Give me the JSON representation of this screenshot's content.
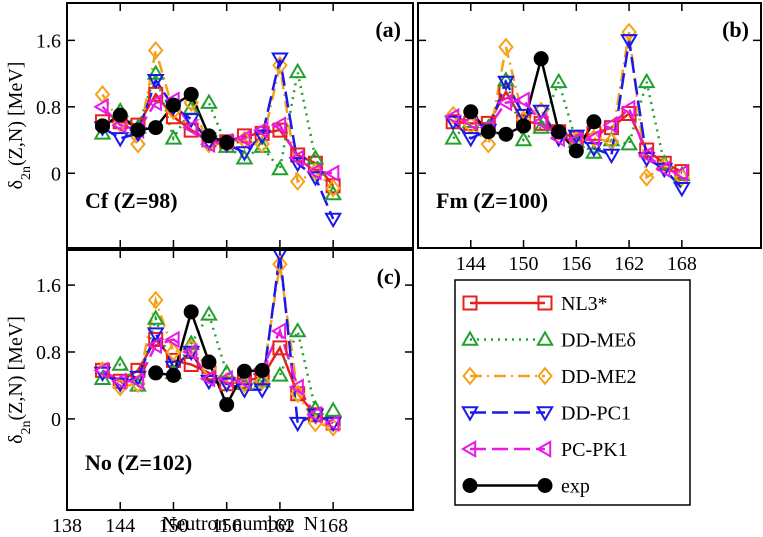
{
  "chart_data": [
    {
      "type": "line",
      "title": "(a)",
      "annotation": "Cf (Z=98)",
      "y_label": {
        "symbol": "δ",
        "subscript": "2n",
        "rest": "(Z,N) [MeV]"
      },
      "xlim": [
        138,
        177
      ],
      "ylim": [
        -0.9,
        2.05
      ],
      "yticks": [
        0,
        0.8,
        1.6
      ],
      "x": [
        142,
        144,
        146,
        148,
        150,
        152,
        154,
        156,
        158,
        160,
        162,
        164,
        166,
        168
      ],
      "series": [
        {
          "name": "NL3*",
          "color": "#e8221a",
          "marker": "square",
          "linestyle": "solid",
          "values": [
            0.62,
            0.62,
            0.58,
            0.95,
            0.68,
            0.52,
            0.4,
            0.38,
            0.45,
            0.48,
            0.52,
            0.22,
            0.12,
            -0.15
          ]
        },
        {
          "name": "DD-MEδ",
          "color": "#22a02c",
          "marker": "triangle-up",
          "linestyle": "dotted",
          "values": [
            0.48,
            0.75,
            0.55,
            1.2,
            0.42,
            0.78,
            0.85,
            0.32,
            0.18,
            0.32,
            0.05,
            1.22,
            0.18,
            -0.25
          ]
        },
        {
          "name": "DD-ME2",
          "color": "#f5a21b",
          "marker": "diamond",
          "linestyle": "dashdot",
          "values": [
            0.95,
            0.6,
            0.35,
            1.48,
            0.75,
            0.85,
            0.35,
            0.35,
            0.4,
            0.35,
            1.3,
            -0.1,
            0.02,
            -0.18
          ]
        },
        {
          "name": "DD-PC1",
          "color": "#1a1ae8",
          "marker": "triangle-down",
          "linestyle": "dashed",
          "values": [
            0.55,
            0.42,
            0.48,
            1.12,
            0.8,
            0.65,
            0.38,
            0.35,
            0.25,
            0.45,
            1.38,
            0.12,
            -0.05,
            -0.55
          ]
        },
        {
          "name": "PC-PK1",
          "color": "#e81ae8",
          "marker": "triangle-left",
          "linestyle": "dashed",
          "values": [
            0.8,
            0.58,
            0.52,
            0.85,
            0.88,
            0.55,
            0.35,
            0.38,
            0.42,
            0.52,
            0.58,
            0.18,
            0.02,
            0.0
          ]
        },
        {
          "name": "exp",
          "color": "#000000",
          "marker": "circle",
          "linestyle": "solid",
          "values": [
            0.57,
            0.7,
            0.52,
            0.55,
            0.82,
            0.95,
            0.45,
            0.37,
            null,
            null,
            null,
            null,
            null,
            null
          ]
        }
      ]
    },
    {
      "type": "line",
      "title": "(b)",
      "annotation": "Fm (Z=100)",
      "xlim": [
        138,
        177
      ],
      "ylim": [
        -0.9,
        2.05
      ],
      "xticks": [
        144,
        150,
        156,
        162,
        168
      ],
      "x": [
        142,
        144,
        146,
        148,
        150,
        152,
        154,
        156,
        158,
        160,
        162,
        164,
        166,
        168
      ],
      "series": [
        {
          "name": "NL3*",
          "color": "#e8221a",
          "marker": "square",
          "linestyle": "solid",
          "values": [
            0.62,
            0.6,
            0.6,
            0.98,
            0.62,
            0.6,
            0.5,
            0.42,
            0.48,
            0.55,
            0.72,
            0.28,
            0.12,
            0.02
          ]
        },
        {
          "name": "DD-MEδ",
          "color": "#22a02c",
          "marker": "triangle-up",
          "linestyle": "dotted",
          "values": [
            0.42,
            0.62,
            0.55,
            1.12,
            0.4,
            0.55,
            1.1,
            0.38,
            0.25,
            0.4,
            0.35,
            1.1,
            0.12,
            -0.02
          ]
        },
        {
          "name": "DD-ME2",
          "color": "#f5a21b",
          "marker": "diamond",
          "linestyle": "dashdot",
          "values": [
            0.7,
            0.58,
            0.35,
            1.52,
            0.65,
            0.75,
            0.45,
            0.4,
            0.42,
            0.38,
            1.7,
            -0.05,
            0.08,
            -0.05
          ]
        },
        {
          "name": "DD-PC1",
          "color": "#1a1ae8",
          "marker": "triangle-down",
          "linestyle": "dashed",
          "values": [
            0.62,
            0.42,
            0.52,
            1.1,
            0.7,
            0.75,
            0.42,
            0.45,
            0.3,
            0.22,
            1.6,
            0.18,
            0.05,
            -0.18
          ]
        },
        {
          "name": "PC-PK1",
          "color": "#e81ae8",
          "marker": "triangle-left",
          "linestyle": "dashed",
          "values": [
            0.68,
            0.62,
            0.55,
            0.85,
            0.88,
            0.62,
            0.42,
            0.4,
            0.42,
            0.58,
            0.78,
            0.22,
            0.05,
            0.0
          ]
        },
        {
          "name": "exp",
          "color": "#000000",
          "marker": "circle",
          "linestyle": "solid",
          "values": [
            null,
            0.74,
            0.5,
            0.47,
            0.57,
            1.38,
            0.5,
            0.27,
            0.62,
            null,
            null,
            null,
            null,
            null
          ]
        }
      ]
    },
    {
      "type": "line",
      "title": "(c)",
      "annotation": "No (Z=102)",
      "y_label": {
        "symbol": "δ",
        "subscript": "2n",
        "rest": "(Z,N) [MeV]"
      },
      "x_label": "Neutron number  N",
      "xlim": [
        138,
        177
      ],
      "ylim": [
        -1.09,
        2.02
      ],
      "yticks": [
        0,
        0.8,
        1.6
      ],
      "xticks": [
        138,
        144,
        150,
        156,
        162,
        168
      ],
      "x": [
        142,
        144,
        146,
        148,
        150,
        152,
        154,
        156,
        158,
        160,
        162,
        164,
        166,
        168
      ],
      "series": [
        {
          "name": "NL3*",
          "color": "#e8221a",
          "marker": "square",
          "linestyle": "solid",
          "values": [
            0.58,
            0.45,
            0.58,
            0.95,
            0.7,
            0.65,
            0.55,
            0.42,
            0.45,
            0.5,
            0.85,
            0.3,
            0.05,
            -0.05
          ]
        },
        {
          "name": "DD-MEδ",
          "color": "#22a02c",
          "marker": "triangle-up",
          "linestyle": "dotted",
          "values": [
            0.48,
            0.65,
            0.4,
            1.2,
            0.55,
            0.9,
            1.25,
            0.55,
            0.42,
            0.45,
            0.52,
            1.05,
            0.12,
            0.1
          ]
        },
        {
          "name": "DD-ME2",
          "color": "#f5a21b",
          "marker": "diamond",
          "linestyle": "dashdot",
          "values": [
            0.58,
            0.38,
            0.42,
            1.42,
            0.8,
            0.85,
            0.6,
            0.45,
            0.42,
            0.45,
            1.85,
            0.3,
            -0.05,
            -0.1
          ]
        },
        {
          "name": "DD-PC1",
          "color": "#1a1ae8",
          "marker": "triangle-down",
          "linestyle": "dashed",
          "values": [
            0.55,
            0.42,
            0.5,
            1.02,
            0.62,
            0.8,
            0.45,
            0.42,
            0.35,
            0.35,
            1.98,
            -0.05,
            0.05,
            -0.05
          ]
        },
        {
          "name": "PC-PK1",
          "color": "#e81ae8",
          "marker": "triangle-left",
          "linestyle": "dashed",
          "values": [
            0.58,
            0.45,
            0.45,
            0.88,
            0.95,
            0.8,
            0.48,
            0.48,
            0.45,
            0.6,
            1.05,
            0.38,
            0.05,
            -0.05
          ]
        },
        {
          "name": "exp",
          "color": "#000000",
          "marker": "circle",
          "linestyle": "solid",
          "values": [
            null,
            null,
            null,
            0.55,
            0.52,
            1.28,
            0.68,
            0.17,
            0.57,
            0.58,
            null,
            null,
            null,
            null
          ]
        }
      ]
    }
  ]
}
